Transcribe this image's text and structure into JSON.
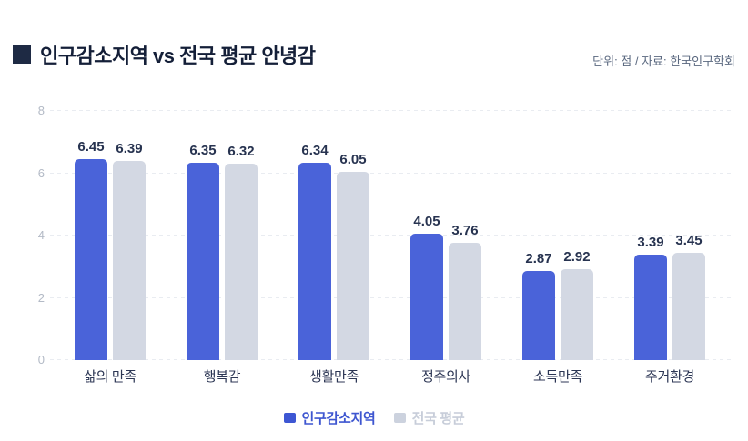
{
  "header": {
    "title": "인구감소지역 vs 전국 평균 안녕감",
    "unit_source": "단위: 점 / 자료: 한국인구학회"
  },
  "chart_data": {
    "type": "bar",
    "title": "인구감소지역 vs 전국 평균 안녕감",
    "categories": [
      "삶의 만족",
      "행복감",
      "생활만족",
      "정주의사",
      "소득만족",
      "주거환경"
    ],
    "series": [
      {
        "name": "인구감소지역",
        "color": "#4a63d9",
        "values": [
          6.45,
          6.35,
          6.34,
          4.05,
          2.87,
          3.39
        ]
      },
      {
        "name": "전국 평균",
        "color": "#d3d8e3",
        "values": [
          6.39,
          6.32,
          6.05,
          3.76,
          2.92,
          3.45
        ]
      }
    ],
    "xlabel": "",
    "ylabel": "",
    "ylim": [
      0,
      8
    ],
    "yticks": [
      0,
      2,
      4,
      6,
      8
    ],
    "grid": "dashed-horizontal",
    "value_labels": true,
    "value_label_format": "2-decimals",
    "legend_position": "bottom-center"
  },
  "legend": {
    "items": [
      {
        "label": "인구감소지역",
        "swatch_color": "#3d56d3",
        "text_color": "#3e56d0"
      },
      {
        "label": "전국 평균",
        "swatch_color": "#ccd2de",
        "text_color": "#c7cdd9"
      }
    ]
  },
  "colors": {
    "background": "#ffffff",
    "title_text": "#141f38",
    "title_square": "#1e2a44",
    "source_text": "#5b6980",
    "bar_primary": "#4a63d9",
    "bar_secondary": "#d3d8e3",
    "value_label": "#273350",
    "category_label": "#2c3654",
    "axis_tick": "#b3bac6",
    "gridline": "#e9ecf1"
  }
}
